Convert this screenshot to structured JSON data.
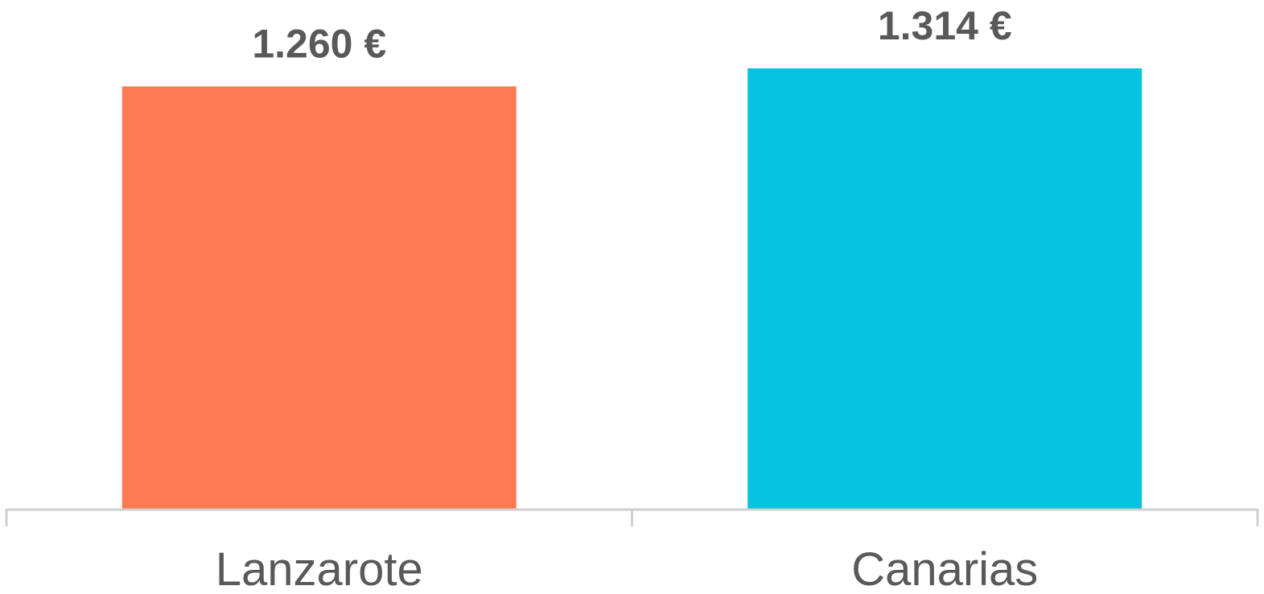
{
  "chart_data": {
    "type": "bar",
    "categories": [
      "Lanzarote",
      "Canarias"
    ],
    "values": [
      1260,
      1314
    ],
    "value_labels": [
      "1.260 €",
      "1.314 €"
    ],
    "colors": [
      "#ff7a52",
      "#05c2de"
    ]
  }
}
